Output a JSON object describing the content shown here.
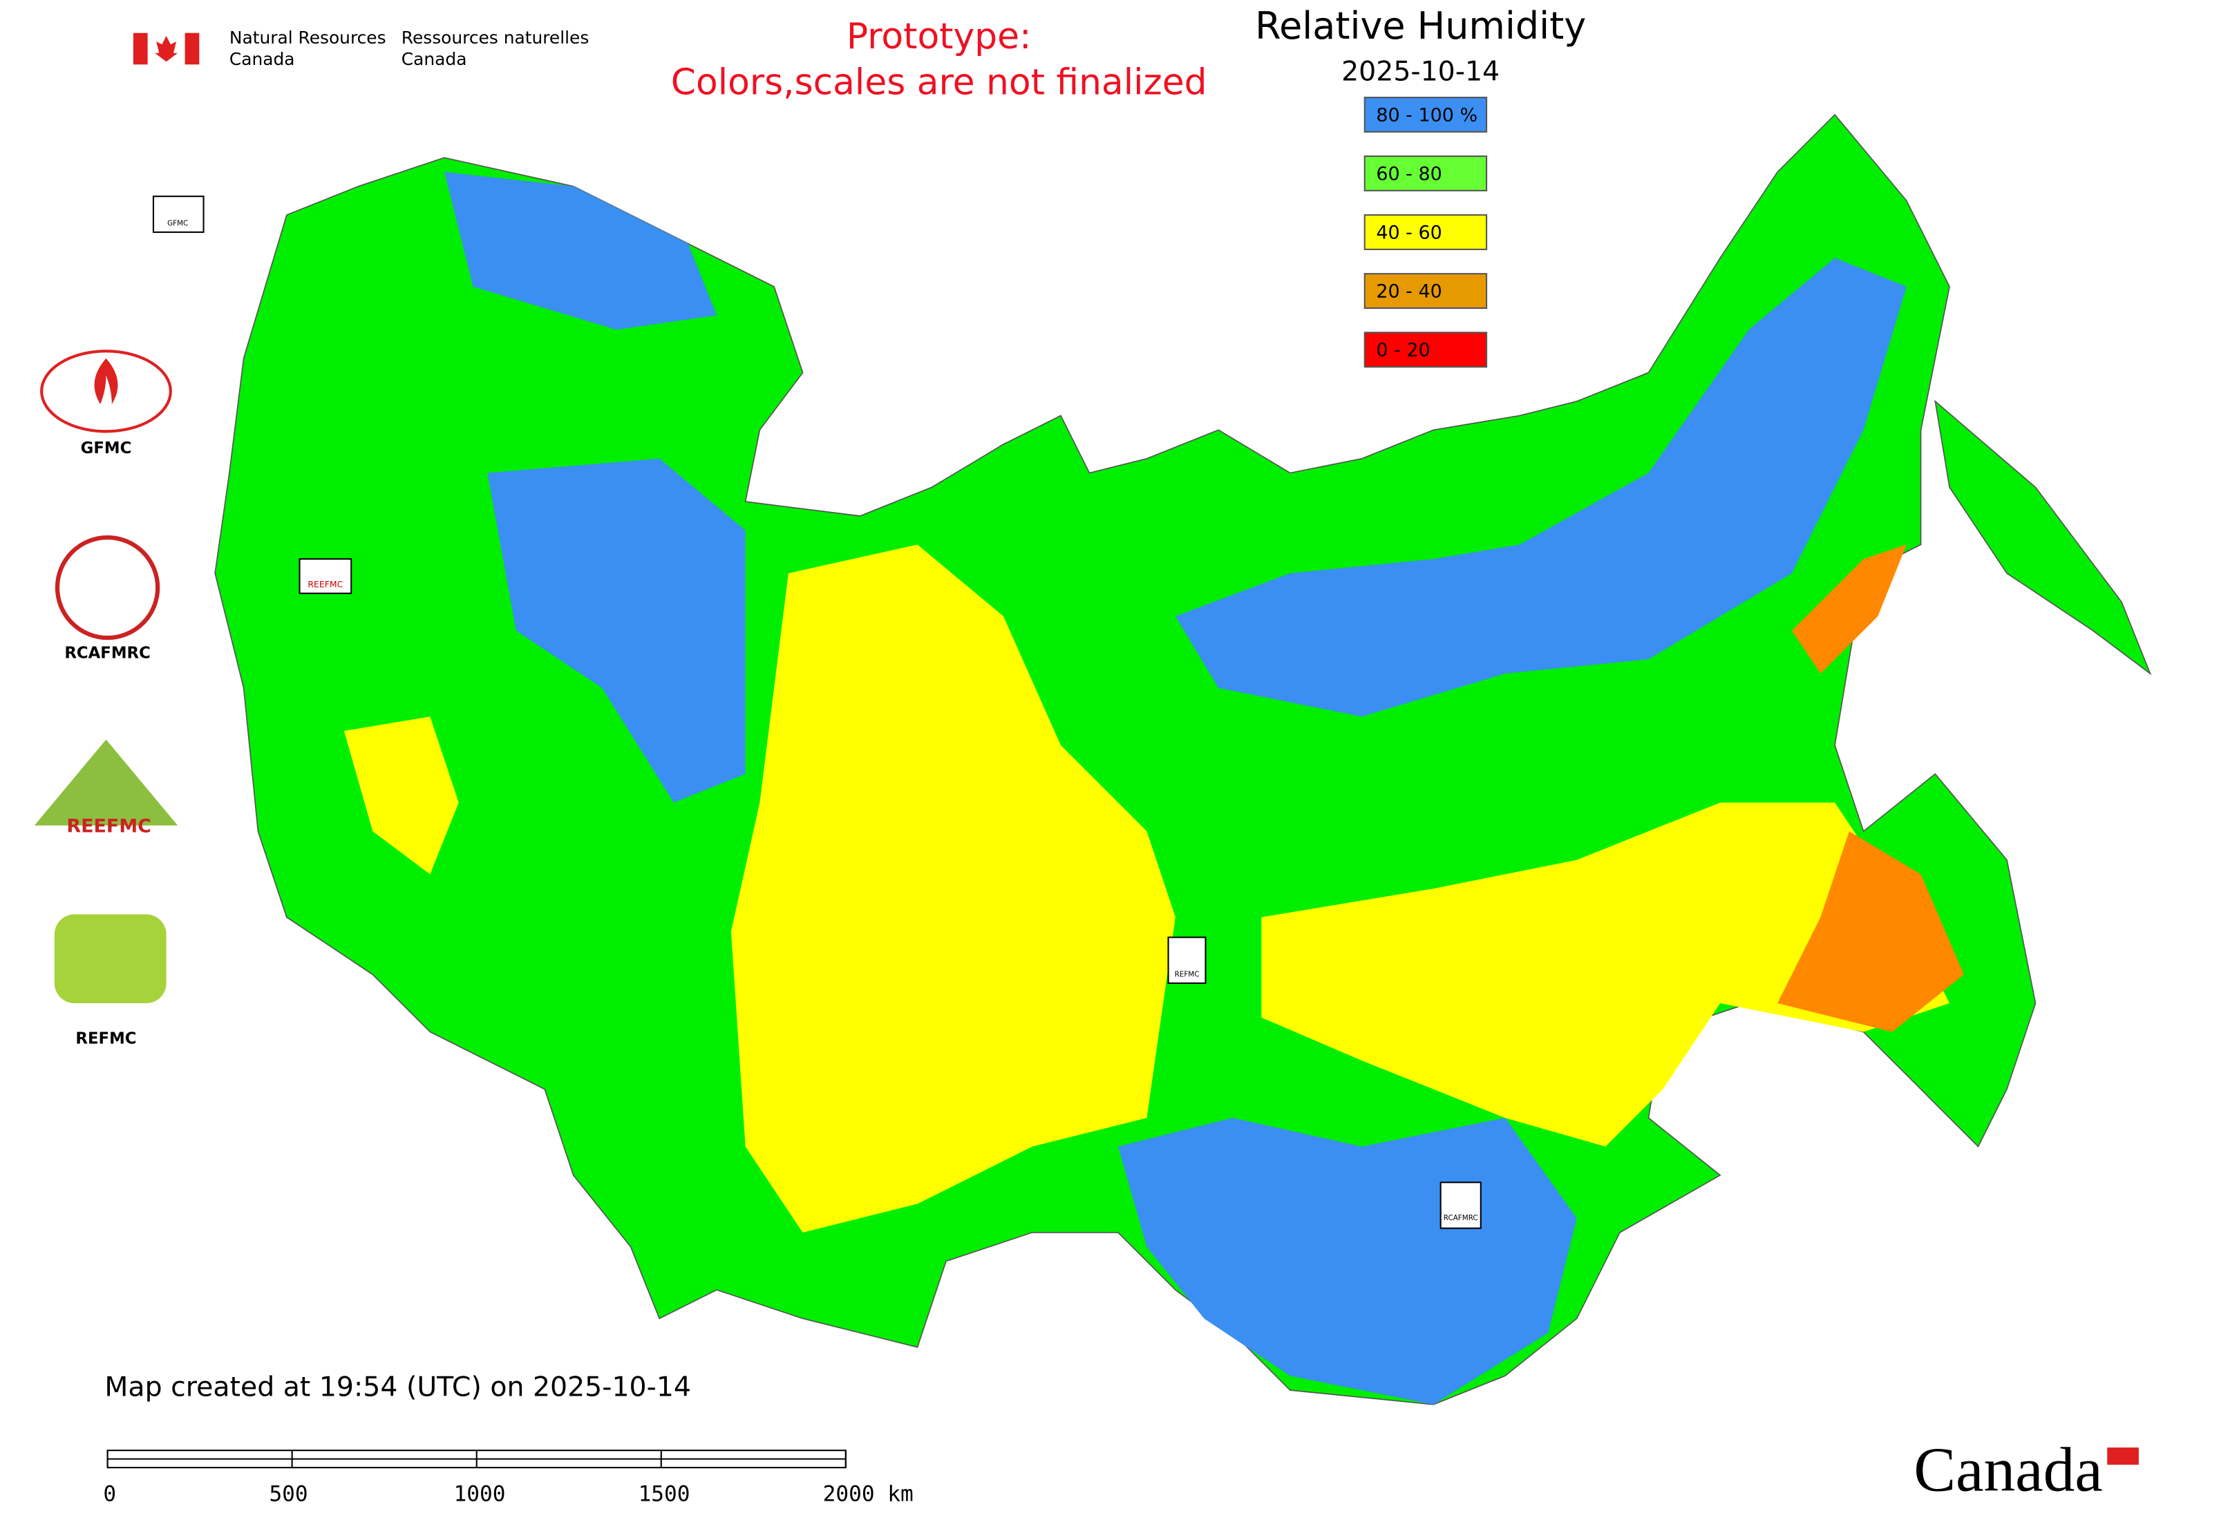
{
  "header": {
    "dept_en": [
      "Natural Resources",
      "Canada"
    ],
    "dept_fr": [
      "Ressources naturelles",
      "Canada"
    ],
    "notice": [
      "Prototype:",
      "Colors,scales are not finalized"
    ]
  },
  "title": "Relative Humidity",
  "date": "2025-10-14",
  "legend": [
    {
      "label": "80 - 100 %",
      "color": "#3b8ff2"
    },
    {
      "label": "60 - 80",
      "color": "#66ff33"
    },
    {
      "label": "40 - 60",
      "color": "#ffff00"
    },
    {
      "label": "20 - 40",
      "color": "#e69a00"
    },
    {
      "label": "0 - 20",
      "color": "#ff0000"
    }
  ],
  "logos": [
    "GFMC",
    "RCAFMRC",
    "REEFMC",
    "REFMC"
  ],
  "map_markers": [
    "GFMC",
    "REEFMC",
    "REFMC",
    "RCAFMRC"
  ],
  "footer": {
    "created": "Map created at 19:54 (UTC) on 2025-10-14",
    "scale_ticks": [
      "0",
      "500",
      "1000",
      "1500",
      "2000 km"
    ]
  },
  "wordmark": "Canada"
}
